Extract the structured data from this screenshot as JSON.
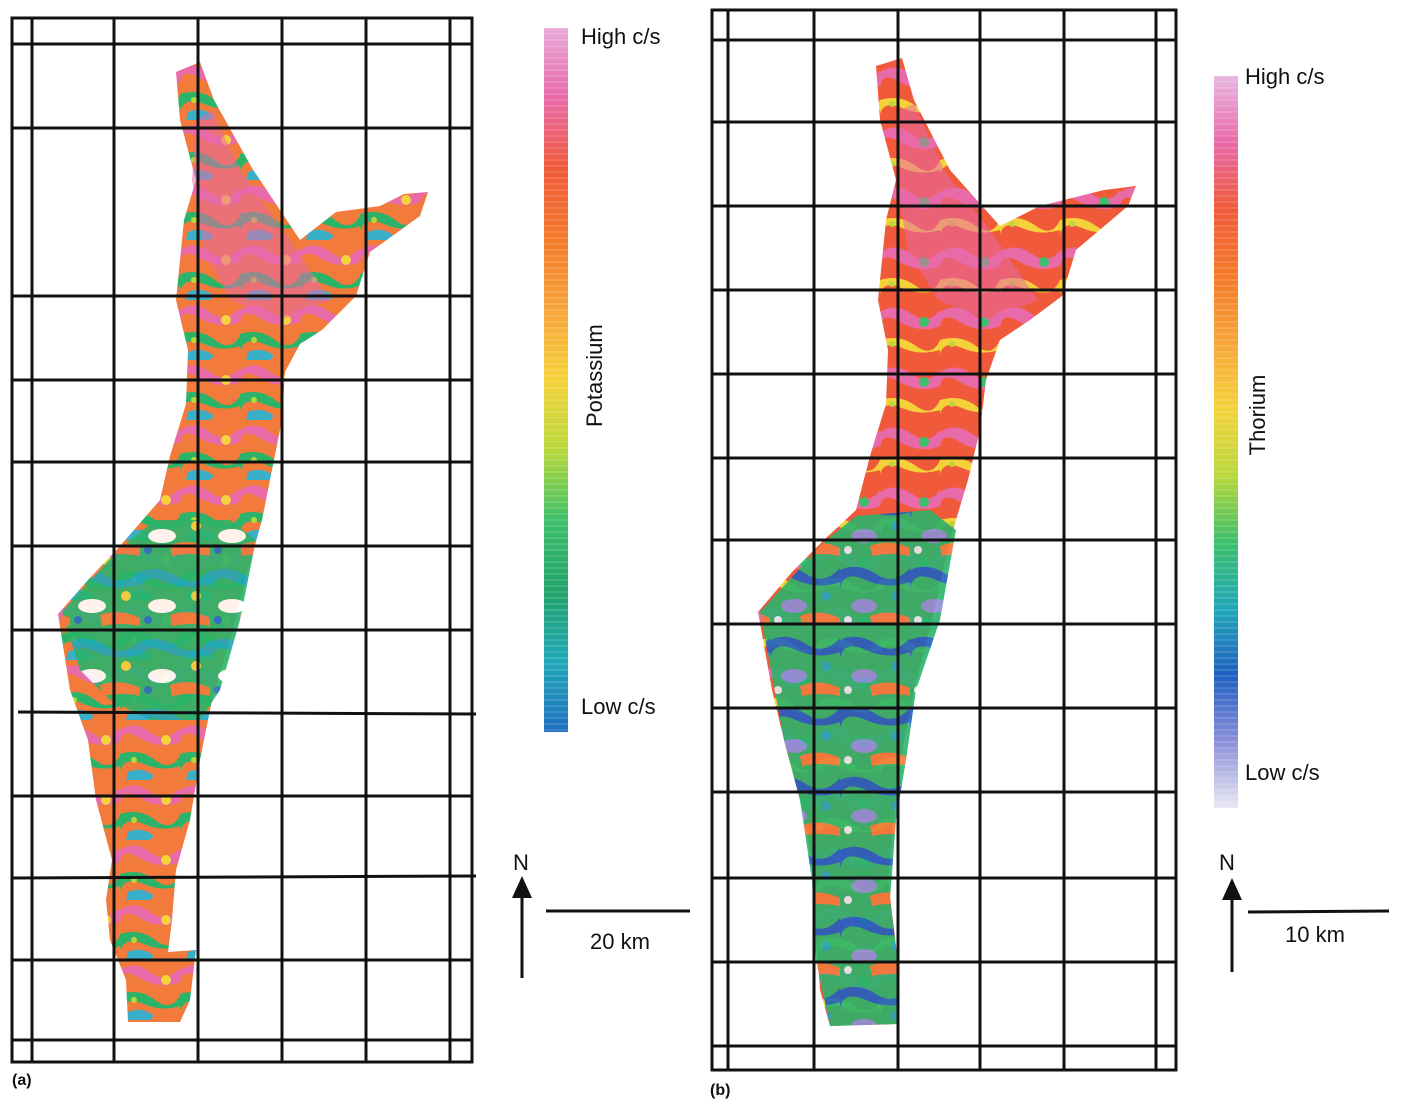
{
  "panels": [
    {
      "id": "a",
      "label": "(a)",
      "legend": {
        "title": "Potassium",
        "high_label": "High c/s",
        "low_label": "Low c/s",
        "colors": [
          "#e7a8d8",
          "#e86aa8",
          "#f05a3a",
          "#f47a2a",
          "#f7a53a",
          "#f5d23a",
          "#b8d83a",
          "#3cbf6a",
          "#22a36a",
          "#20a8b8",
          "#1f6fc0"
        ]
      },
      "north_label": "N",
      "scale_label": "20 km"
    },
    {
      "id": "b",
      "label": "(b)",
      "legend": {
        "title": "Thorium",
        "high_label": "High c/s",
        "low_label": "Low c/s",
        "colors": [
          "#e7b6e0",
          "#e86aa8",
          "#f05a3a",
          "#f47a2a",
          "#f7a53a",
          "#f5d23a",
          "#b8d83a",
          "#3cbf6a",
          "#20a8b8",
          "#1f5fc0",
          "#8a8fd8",
          "#e8e8f2"
        ]
      },
      "north_label": "N",
      "scale_label": "10 km"
    }
  ]
}
